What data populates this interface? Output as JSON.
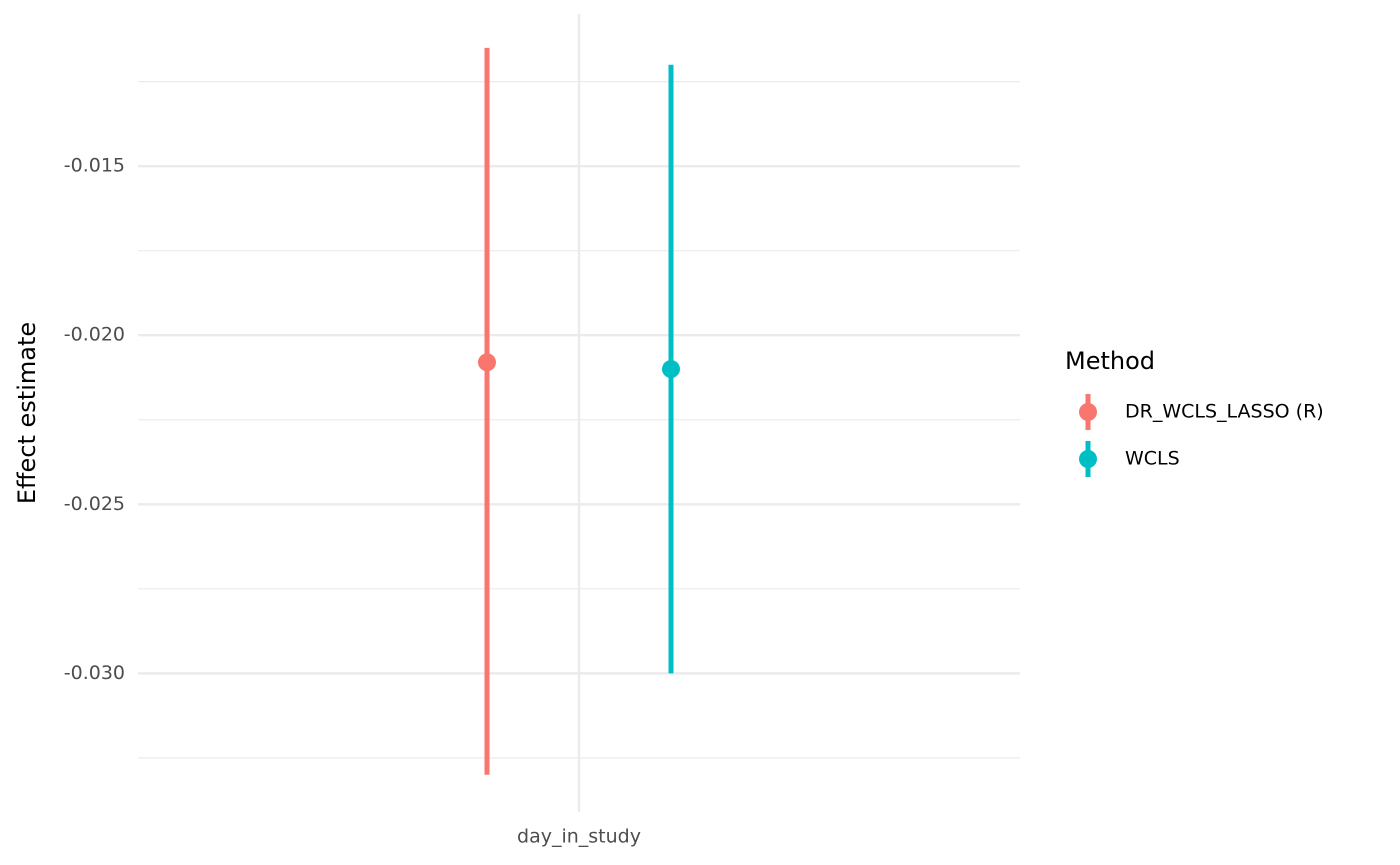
{
  "chart_data": {
    "type": "pointrange",
    "y_label": "Effect estimate",
    "categories": [
      "day_in_study"
    ],
    "legend_title": "Method",
    "legend_position": "right",
    "grid": true,
    "ylim": [
      -0.0341,
      -0.0105
    ],
    "yticks": [
      {
        "value": -0.03,
        "label": "-0.030"
      },
      {
        "value": -0.025,
        "label": "-0.025"
      },
      {
        "value": -0.02,
        "label": "-0.020"
      },
      {
        "value": -0.015,
        "label": "-0.015"
      }
    ],
    "minor_yticks": [
      -0.0325,
      -0.0275,
      -0.0225,
      -0.0175,
      -0.0125
    ],
    "series": [
      {
        "name": "DR_WCLS_LASSO (R)",
        "color": "#f8766d",
        "values": [
          -0.0208
        ],
        "lower": [
          -0.033
        ],
        "upper": [
          -0.0115
        ]
      },
      {
        "name": "WCLS",
        "color": "#00bfc4",
        "values": [
          -0.021
        ],
        "lower": [
          -0.03
        ],
        "upper": [
          -0.012
        ]
      }
    ]
  }
}
